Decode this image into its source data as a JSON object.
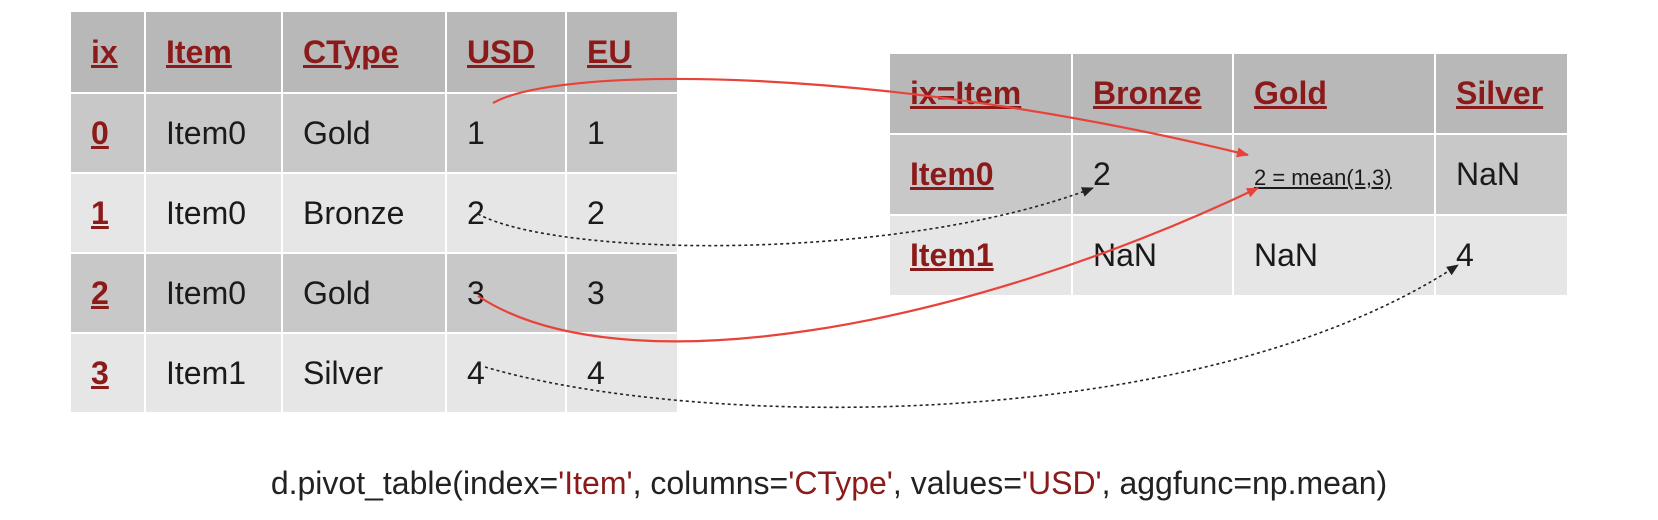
{
  "source_table": {
    "headers": [
      "ix",
      "Item",
      "CType",
      "USD",
      "EU"
    ],
    "rows": [
      {
        "ix": "0",
        "item": "Item0",
        "ctype": "Gold",
        "usd": "1",
        "eu": "1"
      },
      {
        "ix": "1",
        "item": "Item0",
        "ctype": "Bronze",
        "usd": "2",
        "eu": "2"
      },
      {
        "ix": "2",
        "item": "Item0",
        "ctype": "Gold",
        "usd": "3",
        "eu": "3"
      },
      {
        "ix": "3",
        "item": "Item1",
        "ctype": "Silver",
        "usd": "4",
        "eu": "4"
      }
    ]
  },
  "pivot_table": {
    "headers": [
      "ix=Item",
      "Bronze",
      "Gold",
      "Silver"
    ],
    "rows": [
      {
        "index": "Item0",
        "bronze": "2",
        "gold": "2 = mean(1,3)",
        "silver": "NaN"
      },
      {
        "index": "Item1",
        "bronze": "NaN",
        "gold": "NaN",
        "silver": "4"
      }
    ]
  },
  "caption": {
    "p1": "d.pivot_table(index=",
    "s1": "'Item'",
    "p2": ", columns=",
    "s2": "'CType'",
    "p3": ", values=",
    "s3": "'USD'",
    "p4": ",  aggfunc=np.mean)"
  },
  "colors": {
    "header_text": "#8b1a1a",
    "highlight_text": "#b03060",
    "mean_arrow": "#e8433a",
    "direct_arrow": "#222222"
  }
}
